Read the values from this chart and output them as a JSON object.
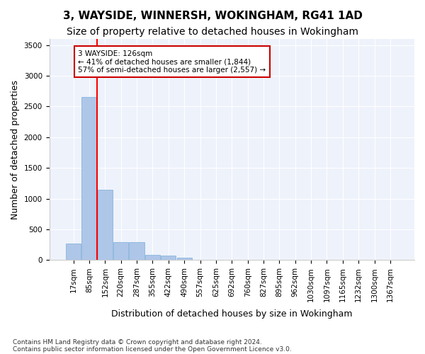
{
  "title": "3, WAYSIDE, WINNERSH, WOKINGHAM, RG41 1AD",
  "subtitle": "Size of property relative to detached houses in Wokingham",
  "xlabel": "Distribution of detached houses by size in Wokingham",
  "ylabel": "Number of detached properties",
  "bar_values": [
    270,
    2650,
    1150,
    290,
    290,
    90,
    70,
    40,
    5,
    0,
    0,
    0,
    0,
    0,
    0,
    0,
    0,
    0,
    0,
    0,
    0
  ],
  "bar_labels": [
    "17sqm",
    "85sqm",
    "152sqm",
    "220sqm",
    "287sqm",
    "355sqm",
    "422sqm",
    "490sqm",
    "557sqm",
    "625sqm",
    "692sqm",
    "760sqm",
    "827sqm",
    "895sqm",
    "962sqm",
    "1030sqm",
    "1097sqm",
    "1165sqm",
    "1232sqm",
    "1300sqm",
    "1367sqm"
  ],
  "bar_color": "#aec6e8",
  "bar_edge_color": "#7aaed6",
  "background_color": "#eef2fb",
  "grid_color": "#ffffff",
  "red_line_x": 1.5,
  "annotation_line1": "3 WAYSIDE: 126sqm",
  "annotation_line2": "← 41% of detached houses are smaller (1,844)",
  "annotation_line3": "57% of semi-detached houses are larger (2,557) →",
  "annotation_box_color": "#ffffff",
  "annotation_box_edge": "#cc0000",
  "ylim": [
    0,
    3600
  ],
  "yticks": [
    0,
    500,
    1000,
    1500,
    2000,
    2500,
    3000,
    3500
  ],
  "footer1": "Contains HM Land Registry data © Crown copyright and database right 2024.",
  "footer2": "Contains public sector information licensed under the Open Government Licence v3.0.",
  "title_fontsize": 11,
  "subtitle_fontsize": 10,
  "tick_fontsize": 7.5,
  "ylabel_fontsize": 9,
  "xlabel_fontsize": 9
}
